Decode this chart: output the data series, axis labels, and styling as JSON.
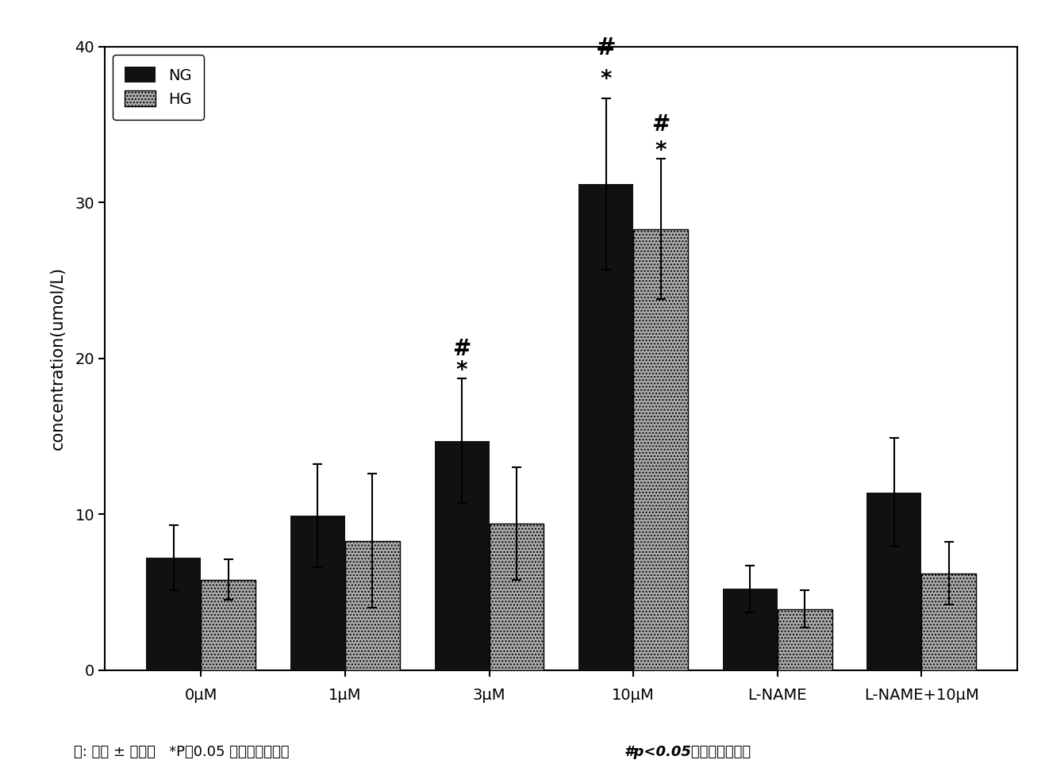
{
  "categories": [
    "0μM",
    "1μM",
    "3μM",
    "10μM",
    "L-NAME",
    "L-NAME+10μM"
  ],
  "ng_values": [
    7.2,
    9.9,
    14.7,
    31.2,
    5.2,
    11.4
  ],
  "hg_values": [
    5.8,
    8.3,
    9.4,
    28.3,
    3.9,
    6.2
  ],
  "ng_errors": [
    2.1,
    3.3,
    4.0,
    5.5,
    1.5,
    3.5
  ],
  "hg_errors": [
    1.3,
    4.3,
    3.6,
    4.5,
    1.2,
    2.0
  ],
  "ng_color": "#111111",
  "hg_color": "#aaaaaa",
  "hg_hatch": "....",
  "ylabel": "concentration(umol/L)",
  "ylim": [
    0,
    40
  ],
  "yticks": [
    0,
    10,
    20,
    30,
    40
  ],
  "bar_width": 0.38,
  "figsize": [
    13.22,
    9.82
  ],
  "dpi": 100,
  "legend_labels": [
    "NG",
    "HG"
  ],
  "background_color": "#ffffff"
}
